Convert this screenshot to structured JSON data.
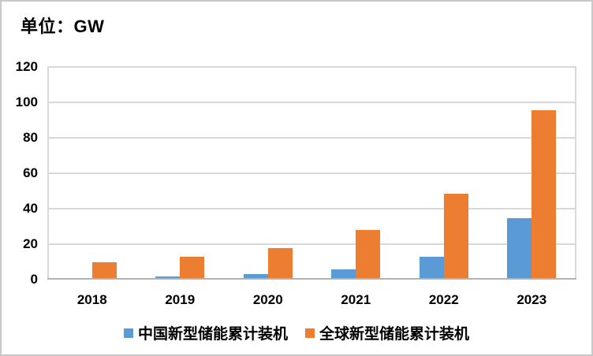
{
  "chart_data": {
    "type": "bar",
    "title": "单位：GW",
    "categories": [
      "2018",
      "2019",
      "2020",
      "2021",
      "2022",
      "2023"
    ],
    "series": [
      {
        "name": "中国新型储能累计装机",
        "key": "china",
        "color": "#5B9BD5",
        "values": [
          1.1,
          1.7,
          3.3,
          5.7,
          13.1,
          34.5
        ]
      },
      {
        "name": "全球新型储能累计装机",
        "key": "global",
        "color": "#ED7D31",
        "values": [
          10,
          13,
          18,
          28,
          48.5,
          95.5
        ]
      }
    ],
    "xlabel": "",
    "ylabel": "",
    "ylim": [
      0,
      120
    ],
    "yticks": [
      0,
      20,
      40,
      60,
      80,
      100,
      120
    ],
    "grid": "horizontal",
    "legend_position": "bottom",
    "colors": {
      "gridline": "#D9D9D9",
      "axis_line": "#B3B3B3",
      "text": "#000000",
      "border": "#C8C8C8",
      "background": "#FFFFFF"
    }
  }
}
